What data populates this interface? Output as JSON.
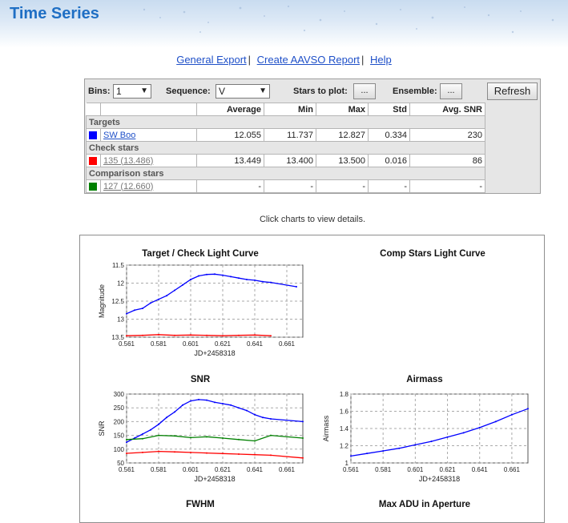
{
  "page": {
    "title": "Time Series"
  },
  "nav": {
    "general_export": "General Export",
    "create_report": "Create AAVSO Report",
    "help": "Help",
    "sep": "|"
  },
  "controls": {
    "bins_label": "Bins:",
    "bins_value": "1",
    "sequence_label": "Sequence:",
    "sequence_value": "V",
    "stars_to_plot_label": "Stars to plot:",
    "ensemble_label": "Ensemble:",
    "dots": "...",
    "refresh": "Refresh"
  },
  "table": {
    "headers": [
      "Average",
      "Min",
      "Max",
      "Std",
      "Avg. SNR"
    ],
    "groups": {
      "targets": "Targets",
      "check": "Check stars",
      "comparison": "Comparison stars"
    },
    "rows": {
      "target": {
        "name": "SW Boo",
        "color": "#0000ff",
        "cells": [
          "12.055",
          "11.737",
          "12.827",
          "0.334",
          "230"
        ]
      },
      "check": {
        "name": "135 (13.486)",
        "color": "#ff0000",
        "cells": [
          "13.449",
          "13.400",
          "13.500",
          "0.016",
          "86"
        ]
      },
      "comp": {
        "name": "127 (12.660)",
        "color": "#008000",
        "cells": [
          "-",
          "-",
          "-",
          "-",
          "-"
        ]
      }
    }
  },
  "hint": "Click charts to view details.",
  "charts": {
    "light_curve_title": "Target / Check Light Curve",
    "comp_title": "Comp Stars Light Curve",
    "snr_title": "SNR",
    "airmass_title": "Airmass",
    "fwhm_title": "FWHM",
    "maxadu_title": "Max ADU in Aperture"
  },
  "chart_data": [
    {
      "type": "line",
      "title": "Target / Check Light Curve",
      "xlabel": "JD+2458318",
      "ylabel": "Magnitude",
      "xlim": [
        0.561,
        0.671
      ],
      "ylim": [
        13.5,
        11.5
      ],
      "xticks": [
        "0.561",
        "0.581",
        "0.601",
        "0.621",
        "0.641",
        "0.661"
      ],
      "yticks": [
        "11.5",
        "12",
        "12.5",
        "13",
        "13.5"
      ],
      "grid": true,
      "series": [
        {
          "color": "#0000ff",
          "x": [
            0.561,
            0.566,
            0.571,
            0.576,
            0.581,
            0.586,
            0.591,
            0.596,
            0.601,
            0.606,
            0.611,
            0.616,
            0.621,
            0.626,
            0.631,
            0.636,
            0.641,
            0.646,
            0.651,
            0.667
          ],
          "y": [
            12.85,
            12.75,
            12.7,
            12.55,
            12.45,
            12.35,
            12.2,
            12.05,
            11.9,
            11.8,
            11.76,
            11.75,
            11.78,
            11.82,
            11.86,
            11.9,
            11.92,
            11.96,
            11.98,
            12.1
          ]
        },
        {
          "color": "#ff0000",
          "x": [
            0.561,
            0.571,
            0.581,
            0.591,
            0.601,
            0.611,
            0.621,
            0.631,
            0.641,
            0.651
          ],
          "y": [
            13.46,
            13.45,
            13.43,
            13.45,
            13.44,
            13.45,
            13.46,
            13.45,
            13.44,
            13.46
          ]
        }
      ]
    },
    {
      "type": "line",
      "title": "Comp Stars Light Curve",
      "series": []
    },
    {
      "type": "line",
      "title": "SNR",
      "xlabel": "JD+2458318",
      "ylabel": "SNR",
      "xlim": [
        0.561,
        0.671
      ],
      "ylim": [
        50,
        300
      ],
      "xticks": [
        "0.561",
        "0.581",
        "0.601",
        "0.621",
        "0.641",
        "0.661"
      ],
      "yticks": [
        "50",
        "100",
        "150",
        "200",
        "250",
        "300"
      ],
      "grid": true,
      "series": [
        {
          "color": "#0000ff",
          "x": [
            0.561,
            0.566,
            0.571,
            0.576,
            0.581,
            0.586,
            0.591,
            0.596,
            0.601,
            0.606,
            0.611,
            0.616,
            0.621,
            0.626,
            0.631,
            0.636,
            0.641,
            0.646,
            0.651,
            0.671
          ],
          "y": [
            125,
            140,
            155,
            170,
            190,
            215,
            235,
            260,
            275,
            280,
            278,
            270,
            265,
            260,
            250,
            240,
            225,
            215,
            210,
            200
          ]
        },
        {
          "color": "#008000",
          "x": [
            0.561,
            0.571,
            0.581,
            0.591,
            0.601,
            0.611,
            0.621,
            0.631,
            0.641,
            0.651,
            0.671
          ],
          "y": [
            135,
            138,
            150,
            148,
            142,
            145,
            140,
            135,
            130,
            150,
            140
          ]
        },
        {
          "color": "#ff0000",
          "x": [
            0.561,
            0.571,
            0.581,
            0.591,
            0.601,
            0.611,
            0.621,
            0.631,
            0.641,
            0.651,
            0.671
          ],
          "y": [
            85,
            88,
            92,
            90,
            88,
            86,
            84,
            82,
            80,
            78,
            68
          ]
        }
      ]
    },
    {
      "type": "line",
      "title": "Airmass",
      "xlabel": "JD+2458318",
      "ylabel": "Airmass",
      "xlim": [
        0.561,
        0.671
      ],
      "ylim": [
        1,
        1.8
      ],
      "xticks": [
        "0.561",
        "0.581",
        "0.601",
        "0.621",
        "0.641",
        "0.661"
      ],
      "yticks": [
        "1",
        "1.2",
        "1.4",
        "1.6",
        "1.8"
      ],
      "grid": true,
      "series": [
        {
          "color": "#0000ff",
          "x": [
            0.561,
            0.571,
            0.581,
            0.591,
            0.601,
            0.611,
            0.621,
            0.631,
            0.641,
            0.651,
            0.661,
            0.671
          ],
          "y": [
            1.08,
            1.11,
            1.14,
            1.17,
            1.21,
            1.25,
            1.3,
            1.35,
            1.41,
            1.48,
            1.56,
            1.63
          ]
        }
      ]
    },
    {
      "type": "line",
      "title": "FWHM",
      "series": []
    },
    {
      "type": "line",
      "title": "Max ADU in Aperture",
      "series": []
    }
  ]
}
